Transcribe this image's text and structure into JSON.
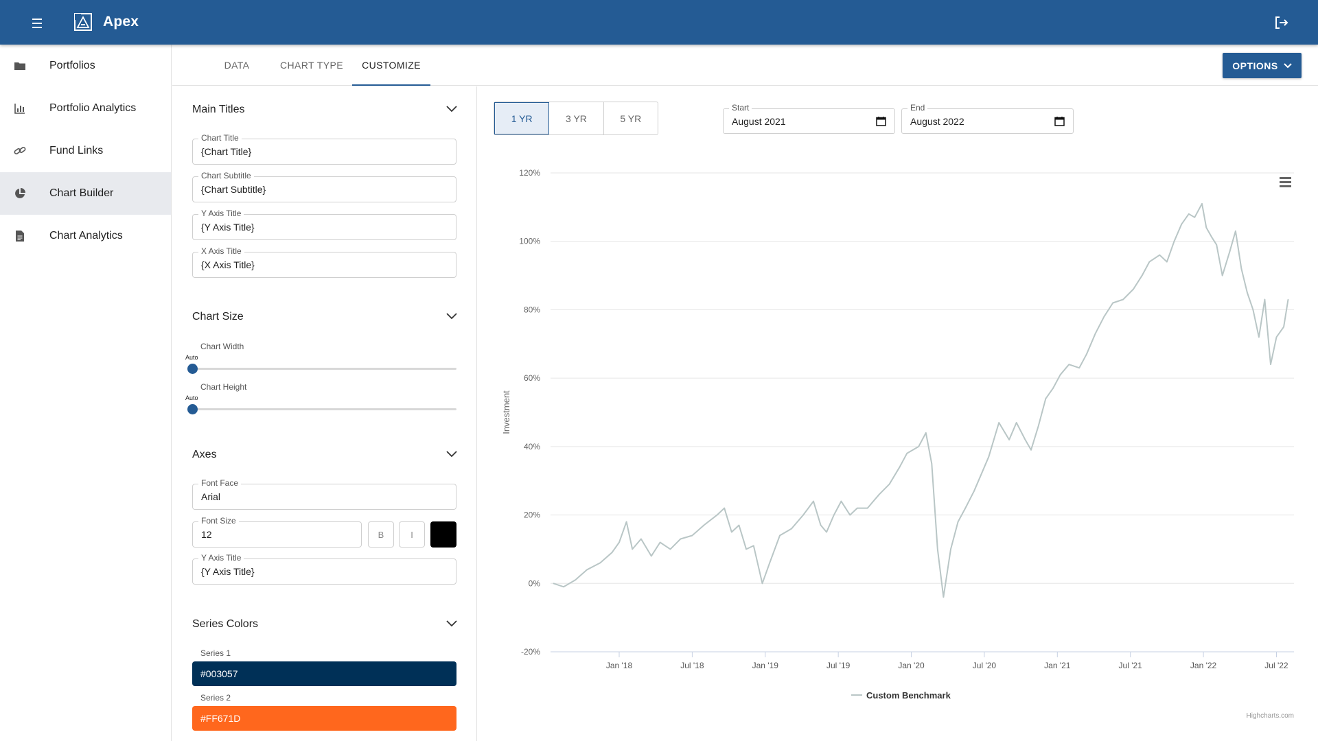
{
  "app": {
    "title": "Apex"
  },
  "sidebar": {
    "items": [
      {
        "label": "Portfolios",
        "icon": "folder-icon"
      },
      {
        "label": "Portfolio Analytics",
        "icon": "bar-chart-icon"
      },
      {
        "label": "Fund Links",
        "icon": "link-icon"
      },
      {
        "label": "Chart Builder",
        "icon": "pie-chart-icon",
        "active": true
      },
      {
        "label": "Chart Analytics",
        "icon": "document-icon"
      }
    ]
  },
  "tabs": [
    {
      "label": "DATA"
    },
    {
      "label": "CHART TYPE"
    },
    {
      "label": "CUSTOMIZE",
      "active": true
    }
  ],
  "options_button": {
    "label": "OPTIONS"
  },
  "customize": {
    "main_titles": {
      "heading": "Main Titles",
      "chart_title": {
        "label": "Chart Title",
        "value": "{Chart Title}"
      },
      "chart_subtitle": {
        "label": "Chart Subtitle",
        "value": "{Chart Subtitle}"
      },
      "y_axis_title": {
        "label": "Y Axis Title",
        "value": "{Y Axis Title}"
      },
      "x_axis_title": {
        "label": "X Axis Title",
        "value": "{X Axis Title}"
      }
    },
    "chart_size": {
      "heading": "Chart Size",
      "width": {
        "label": "Chart Width",
        "value_label": "Auto",
        "level": 0
      },
      "height": {
        "label": "Chart Height",
        "value_label": "Auto",
        "level": 0
      }
    },
    "axes": {
      "heading": "Axes",
      "font_face": {
        "label": "Font Face",
        "value": "Arial"
      },
      "font_size": {
        "label": "Font Size",
        "value": "12"
      },
      "bold_label": "B",
      "italic_label": "I",
      "font_color": "#000000",
      "y_axis_title": {
        "label": "Y Axis Title",
        "value": "{Y Axis Title}"
      }
    },
    "series_colors": {
      "heading": "Series Colors",
      "series": [
        {
          "label": "Series 1",
          "value": "#003057",
          "color": "#003057"
        },
        {
          "label": "Series 2",
          "value": "#FF671D",
          "color": "#FF671D"
        }
      ]
    }
  },
  "range": {
    "buttons": [
      {
        "label": "1 YR",
        "active": true
      },
      {
        "label": "3 YR"
      },
      {
        "label": "5 YR"
      }
    ]
  },
  "dates": {
    "start": {
      "label": "Start",
      "value": "August 2021"
    },
    "end": {
      "label": "End",
      "value": "August 2022"
    }
  },
  "chart_data": {
    "type": "line",
    "title": "",
    "ylabel": "Investment",
    "xlabel": "",
    "ylim": [
      -20,
      120
    ],
    "yticks": [
      -20,
      0,
      20,
      40,
      60,
      80,
      100,
      120
    ],
    "ytick_labels": [
      "-20%",
      "0%",
      "20%",
      "40%",
      "60%",
      "80%",
      "100%",
      "120%"
    ],
    "xtick_labels": [
      "Jan '18",
      "Jul '18",
      "Jan '19",
      "Jul '19",
      "Jan '20",
      "Jul '20",
      "Jan '21",
      "Jul '21",
      "Jan '22",
      "Jul '22"
    ],
    "xtick_values": [
      2018.0,
      2018.5,
      2019.0,
      2019.5,
      2020.0,
      2020.5,
      2021.0,
      2021.5,
      2022.0,
      2022.5
    ],
    "xlim": [
      2017.53,
      2022.62
    ],
    "grid": true,
    "legend_position": "bottom-center",
    "credits": "Highcharts.com",
    "series": [
      {
        "name": "Custom Benchmark",
        "color": "#b9c6c6",
        "points": [
          [
            2017.55,
            0
          ],
          [
            2017.62,
            -1
          ],
          [
            2017.7,
            1
          ],
          [
            2017.78,
            4
          ],
          [
            2017.87,
            6
          ],
          [
            2017.95,
            9
          ],
          [
            2018.0,
            12
          ],
          [
            2018.05,
            18
          ],
          [
            2018.09,
            10
          ],
          [
            2018.15,
            13
          ],
          [
            2018.22,
            8
          ],
          [
            2018.28,
            12
          ],
          [
            2018.35,
            10
          ],
          [
            2018.42,
            13
          ],
          [
            2018.5,
            14
          ],
          [
            2018.58,
            17
          ],
          [
            2018.67,
            20
          ],
          [
            2018.72,
            22
          ],
          [
            2018.77,
            15
          ],
          [
            2018.82,
            17
          ],
          [
            2018.87,
            10
          ],
          [
            2018.92,
            11
          ],
          [
            2018.98,
            0
          ],
          [
            2019.03,
            6
          ],
          [
            2019.1,
            14
          ],
          [
            2019.18,
            16
          ],
          [
            2019.26,
            20
          ],
          [
            2019.33,
            24
          ],
          [
            2019.38,
            17
          ],
          [
            2019.42,
            15
          ],
          [
            2019.47,
            20
          ],
          [
            2019.52,
            24
          ],
          [
            2019.58,
            20
          ],
          [
            2019.63,
            22
          ],
          [
            2019.7,
            22
          ],
          [
            2019.78,
            26
          ],
          [
            2019.85,
            29
          ],
          [
            2019.92,
            34
          ],
          [
            2019.97,
            38
          ],
          [
            2020.05,
            40
          ],
          [
            2020.1,
            44
          ],
          [
            2020.14,
            35
          ],
          [
            2020.18,
            10
          ],
          [
            2020.22,
            -4
          ],
          [
            2020.27,
            10
          ],
          [
            2020.32,
            18
          ],
          [
            2020.37,
            22
          ],
          [
            2020.43,
            27
          ],
          [
            2020.48,
            32
          ],
          [
            2020.53,
            37
          ],
          [
            2020.6,
            47
          ],
          [
            2020.67,
            42
          ],
          [
            2020.72,
            47
          ],
          [
            2020.78,
            42
          ],
          [
            2020.82,
            39
          ],
          [
            2020.87,
            46
          ],
          [
            2020.92,
            54
          ],
          [
            2020.97,
            57
          ],
          [
            2021.02,
            61
          ],
          [
            2021.08,
            64
          ],
          [
            2021.15,
            63
          ],
          [
            2021.2,
            67
          ],
          [
            2021.26,
            73
          ],
          [
            2021.32,
            78
          ],
          [
            2021.38,
            82
          ],
          [
            2021.45,
            83
          ],
          [
            2021.52,
            86
          ],
          [
            2021.58,
            90
          ],
          [
            2021.63,
            94
          ],
          [
            2021.7,
            96
          ],
          [
            2021.75,
            94
          ],
          [
            2021.8,
            100
          ],
          [
            2021.85,
            105
          ],
          [
            2021.9,
            108
          ],
          [
            2021.94,
            107
          ],
          [
            2021.99,
            111
          ],
          [
            2022.02,
            104
          ],
          [
            2022.06,
            101
          ],
          [
            2022.09,
            99
          ],
          [
            2022.13,
            90
          ],
          [
            2022.18,
            97
          ],
          [
            2022.22,
            103
          ],
          [
            2022.26,
            92
          ],
          [
            2022.3,
            85
          ],
          [
            2022.34,
            80
          ],
          [
            2022.38,
            72
          ],
          [
            2022.42,
            83
          ],
          [
            2022.46,
            64
          ],
          [
            2022.5,
            72
          ],
          [
            2022.55,
            75
          ],
          [
            2022.58,
            83
          ]
        ]
      }
    ]
  }
}
